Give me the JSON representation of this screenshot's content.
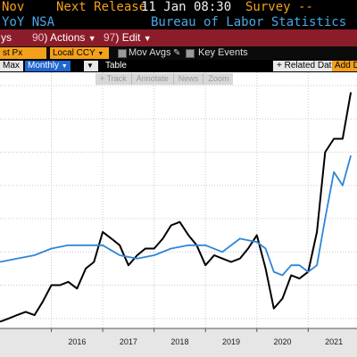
{
  "header": {
    "period": "Nov",
    "next_release_label": "Next Release",
    "next_release_value": "11 Jan 08:30",
    "survey_label": "Survey --",
    "subtitle": "YoY NSA",
    "source": "Bureau of Labor Statistics"
  },
  "toolbar": {
    "left_fragment": "ys",
    "actions_num": "90",
    "actions_label": "Actions",
    "edit_num": "97",
    "edit_label": "Edit"
  },
  "options": {
    "price_field": "st Px",
    "currency_field": "Local CCY",
    "mov_avgs_label": "Mov Avgs",
    "key_events_label": "Key Events"
  },
  "controls": {
    "range": "Max",
    "frequency": "Monthly",
    "table_label": "Table",
    "related_data_label": "+ Related Dat",
    "add_data_label": "Add D"
  },
  "chart_tools": [
    {
      "label": "+ Track"
    },
    {
      "label": "Annotate"
    },
    {
      "label": "News"
    },
    {
      "label": "Zoom"
    }
  ],
  "chart_data": {
    "type": "line",
    "x_tick_labels": [
      "2016",
      "2017",
      "2018",
      "2019",
      "2020",
      "2021"
    ],
    "grid": true,
    "colors": {
      "background": "#ffffff",
      "grid": "#c8c8c8"
    },
    "series": [
      {
        "color": "#000000",
        "x": [
          2015.0,
          2015.17,
          2015.33,
          2015.5,
          2015.67,
          2015.83,
          2016.0,
          2016.17,
          2016.33,
          2016.5,
          2016.67,
          2016.83,
          2017.0,
          2017.17,
          2017.33,
          2017.5,
          2017.67,
          2017.83,
          2018.0,
          2018.17,
          2018.33,
          2018.5,
          2018.67,
          2018.83,
          2019.0,
          2019.17,
          2019.33,
          2019.5,
          2019.67,
          2019.83,
          2020.0,
          2020.17,
          2020.33,
          2020.5,
          2020.67,
          2020.83,
          2021.0,
          2021.17,
          2021.33,
          2021.5,
          2021.67,
          2021.83
        ],
        "values": [
          -0.1,
          0.0,
          0.1,
          0.2,
          0.1,
          0.5,
          1.0,
          1.0,
          1.1,
          0.9,
          1.5,
          1.7,
          2.6,
          2.4,
          2.2,
          1.6,
          1.9,
          2.1,
          2.1,
          2.4,
          2.8,
          2.9,
          2.5,
          2.2,
          1.6,
          1.9,
          1.8,
          1.7,
          1.8,
          2.1,
          2.5,
          1.5,
          0.3,
          0.6,
          1.3,
          1.2,
          1.4,
          2.6,
          5.0,
          5.4,
          5.4,
          6.8
        ]
      },
      {
        "color": "#2f86d6",
        "x": [
          2015.0,
          2015.33,
          2015.67,
          2016.0,
          2016.33,
          2016.67,
          2017.0,
          2017.33,
          2017.67,
          2018.0,
          2018.33,
          2018.67,
          2019.0,
          2019.33,
          2019.67,
          2020.0,
          2020.17,
          2020.33,
          2020.5,
          2020.67,
          2020.83,
          2021.0,
          2021.17,
          2021.33,
          2021.5,
          2021.67,
          2021.83
        ],
        "values": [
          1.7,
          1.8,
          1.9,
          2.1,
          2.2,
          2.2,
          2.2,
          1.9,
          1.8,
          1.9,
          2.1,
          2.2,
          2.2,
          2.0,
          2.4,
          2.3,
          2.1,
          1.4,
          1.3,
          1.6,
          1.6,
          1.4,
          1.6,
          3.0,
          4.4,
          4.0,
          4.9
        ]
      }
    ],
    "xlim": [
      2015.0,
      2021.95
    ],
    "ylim": [
      -0.3,
      7.4
    ]
  }
}
